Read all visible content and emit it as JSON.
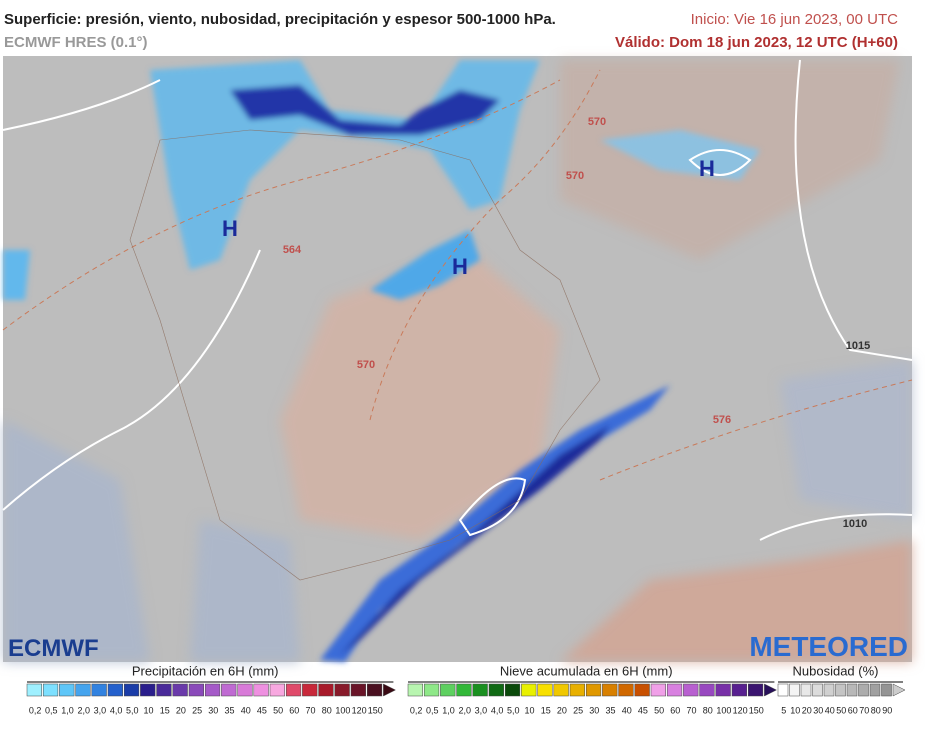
{
  "header": {
    "title": "Superficie: presión, viento, nubosidad, precipitación y espesor 500-1000 hPa.",
    "subtitle": "ECMWF HRES (0.1°)",
    "init": "Inicio: Vie 16 jun 2023, 00 UTC",
    "valid": "Válido: Dom 18 jun 2023, 12 UTC (H+60)"
  },
  "map": {
    "labels": [
      "H",
      "H",
      "H",
      "564",
      "570",
      "570",
      "570",
      "576",
      "1015",
      "1010"
    ],
    "logo_left": "ECMWF",
    "logo_right": "METEORED"
  },
  "legends": [
    {
      "title": "Precipitación en 6H (mm)",
      "labels": [
        "0,2",
        "0,5",
        "1,0",
        "2,0",
        "3,0",
        "4,0",
        "5,0",
        "10",
        "15",
        "20",
        "25",
        "30",
        "35",
        "40",
        "45",
        "50",
        "60",
        "70",
        "80",
        "100",
        "120",
        "150"
      ]
    },
    {
      "title": "Nieve acumulada en 6H (mm)",
      "labels": [
        "0,2",
        "0,5",
        "1,0",
        "2,0",
        "3,0",
        "4,0",
        "5,0",
        "10",
        "15",
        "20",
        "25",
        "30",
        "35",
        "40",
        "45",
        "50",
        "60",
        "70",
        "80",
        "100",
        "120",
        "150"
      ]
    },
    {
      "title": "Nubosidad (%)",
      "labels": [
        "5",
        "10",
        "20",
        "30",
        "40",
        "50",
        "60",
        "70",
        "80",
        "90"
      ]
    }
  ]
}
